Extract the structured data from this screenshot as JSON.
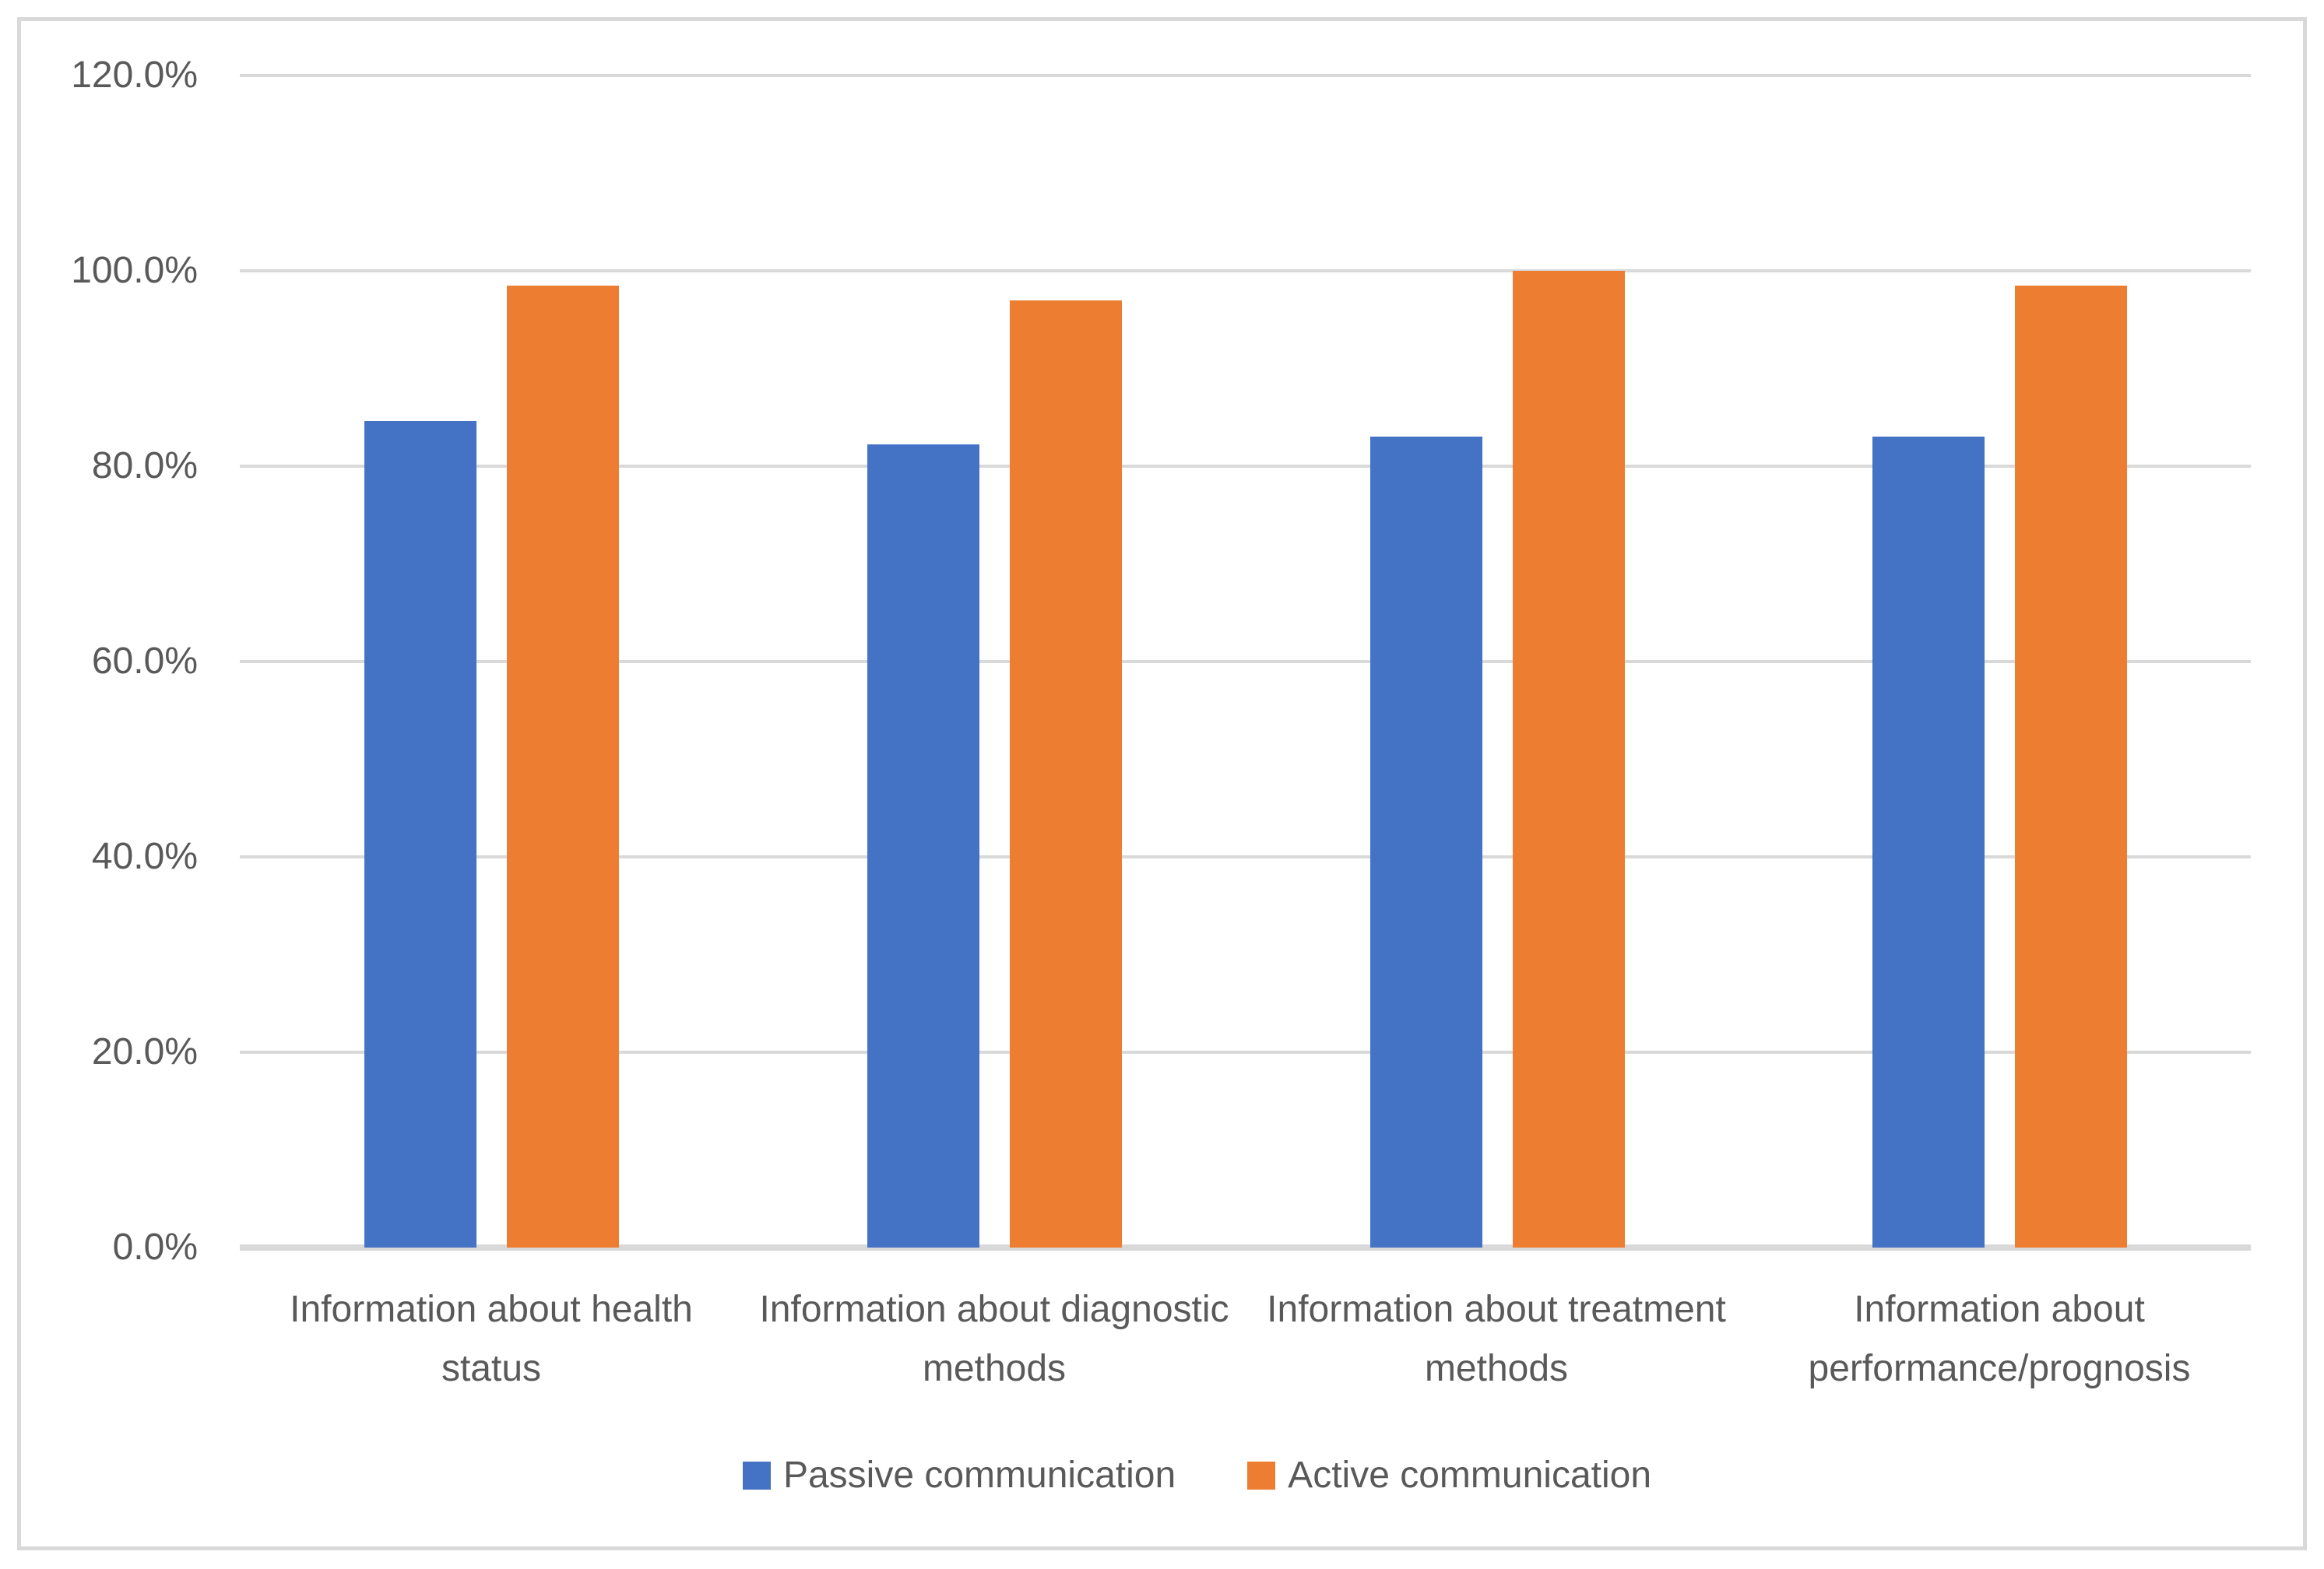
{
  "chart_data": {
    "type": "bar",
    "title": "",
    "xlabel": "",
    "ylabel": "",
    "categories": [
      "Information about health status",
      "Information about diagnostic methods",
      "Information about treatment methods",
      "Information about performance/prognosis"
    ],
    "series": [
      {
        "name": "Passive communication",
        "color": "#4472C4",
        "values": [
          84.6,
          82.2,
          83.0,
          83.0
        ]
      },
      {
        "name": "Active communication",
        "color": "#ED7D31",
        "values": [
          98.5,
          97.0,
          100.0,
          98.5
        ]
      }
    ],
    "value_unit": "%",
    "ylim": [
      0,
      120
    ],
    "y_ticks": [
      {
        "value": 120,
        "label": "120.0%"
      },
      {
        "value": 100,
        "label": "100.0%"
      },
      {
        "value": 80,
        "label": "80.0%"
      },
      {
        "value": 60,
        "label": "60.0%"
      },
      {
        "value": 40,
        "label": "40.0%"
      },
      {
        "value": 20,
        "label": "20.0%"
      },
      {
        "value": 0,
        "label": "0.0%"
      }
    ],
    "grid": true,
    "legend_position": "bottom"
  },
  "palette": {
    "background": "#FFFFFF",
    "frame_border": "#D9D9D9",
    "gridline": "#D9D9D9",
    "axis_line": "#D9D9D9",
    "label_text": "#595959"
  }
}
